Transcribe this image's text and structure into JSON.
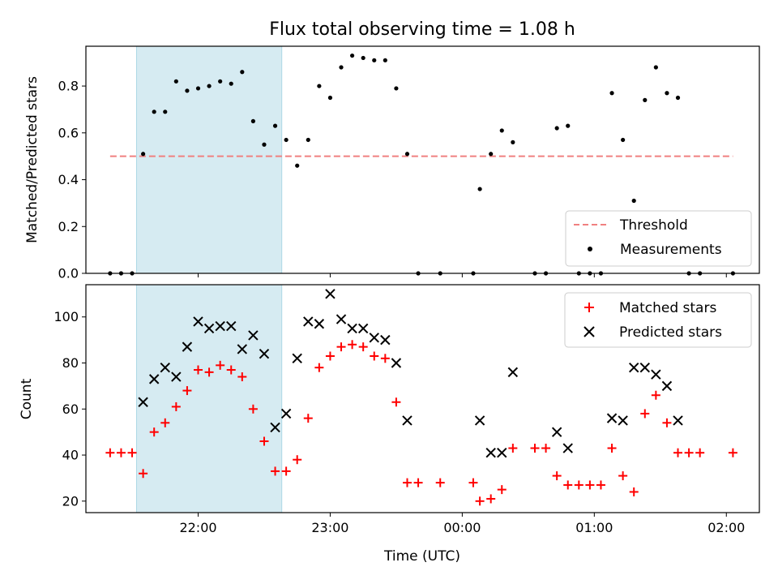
{
  "chart_data": [
    {
      "type": "scatter",
      "title": "Flux total observing time = 1.08 h",
      "xlabel": "",
      "ylabel": "Matched/Predicted stars",
      "x_unit": "time (UTC)",
      "xlim": [
        "21:09",
        "02:15"
      ],
      "ylim": [
        0,
        0.97
      ],
      "yticks": [
        "0.0",
        "0.2",
        "0.4",
        "0.6",
        "0.8"
      ],
      "highlight_span": {
        "start": "21:32",
        "end": "22:38",
        "color": "#add8e6"
      },
      "threshold": {
        "name": "Threshold",
        "y": 0.5,
        "x": [
          "21:20",
          "02:03"
        ],
        "color": "#f08080",
        "style": "dashed"
      },
      "legend": {
        "position": "lower right",
        "entries": [
          "Threshold",
          "Measurements"
        ]
      },
      "series": [
        {
          "name": "Measurements",
          "marker": "dot",
          "color": "#000000",
          "points": [
            [
              "21:20",
              0.0
            ],
            [
              "21:25",
              0.0
            ],
            [
              "21:30",
              0.0
            ],
            [
              "21:35",
              0.51
            ],
            [
              "21:40",
              0.69
            ],
            [
              "21:45",
              0.69
            ],
            [
              "21:50",
              0.82
            ],
            [
              "21:55",
              0.78
            ],
            [
              "22:00",
              0.79
            ],
            [
              "22:05",
              0.8
            ],
            [
              "22:10",
              0.82
            ],
            [
              "22:15",
              0.81
            ],
            [
              "22:20",
              0.86
            ],
            [
              "22:25",
              0.65
            ],
            [
              "22:30",
              0.55
            ],
            [
              "22:35",
              0.63
            ],
            [
              "22:40",
              0.57
            ],
            [
              "22:45",
              0.46
            ],
            [
              "22:50",
              0.57
            ],
            [
              "22:55",
              0.8
            ],
            [
              "23:00",
              0.75
            ],
            [
              "23:05",
              0.88
            ],
            [
              "23:10",
              0.93
            ],
            [
              "23:15",
              0.92
            ],
            [
              "23:20",
              0.91
            ],
            [
              "23:25",
              0.91
            ],
            [
              "23:30",
              0.79
            ],
            [
              "23:35",
              0.51
            ],
            [
              "23:40",
              0.0
            ],
            [
              "23:50",
              0.0
            ],
            [
              "00:05",
              0.0
            ],
            [
              "00:08",
              0.36
            ],
            [
              "00:13",
              0.51
            ],
            [
              "00:18",
              0.61
            ],
            [
              "00:23",
              0.56
            ],
            [
              "00:33",
              0.0
            ],
            [
              "00:38",
              0.0
            ],
            [
              "00:43",
              0.62
            ],
            [
              "00:48",
              0.63
            ],
            [
              "00:53",
              0.0
            ],
            [
              "00:58",
              0.0
            ],
            [
              "01:03",
              0.0
            ],
            [
              "01:08",
              0.77
            ],
            [
              "01:13",
              0.57
            ],
            [
              "01:18",
              0.31
            ],
            [
              "01:23",
              0.74
            ],
            [
              "01:28",
              0.88
            ],
            [
              "01:33",
              0.77
            ],
            [
              "01:38",
              0.75
            ],
            [
              "01:43",
              0.0
            ],
            [
              "01:48",
              0.0
            ],
            [
              "02:03",
              0.0
            ]
          ]
        }
      ]
    },
    {
      "type": "scatter",
      "title": "",
      "xlabel": "Time (UTC)",
      "ylabel": "Count",
      "xlim": [
        "21:09",
        "02:15"
      ],
      "ylim": [
        15,
        114
      ],
      "yticks": [
        "20",
        "40",
        "60",
        "80",
        "100"
      ],
      "xticks": [
        "22:00",
        "23:00",
        "00:00",
        "01:00",
        "02:00"
      ],
      "highlight_span": {
        "start": "21:32",
        "end": "22:38",
        "color": "#add8e6"
      },
      "legend": {
        "position": "upper right",
        "entries": [
          "Matched stars",
          "Predicted stars"
        ]
      },
      "series": [
        {
          "name": "Matched stars",
          "marker": "plus",
          "color": "#ff0000",
          "points": [
            [
              "21:20",
              41
            ],
            [
              "21:25",
              41
            ],
            [
              "21:30",
              41
            ],
            [
              "21:35",
              32
            ],
            [
              "21:40",
              50
            ],
            [
              "21:45",
              54
            ],
            [
              "21:50",
              61
            ],
            [
              "21:55",
              68
            ],
            [
              "22:00",
              77
            ],
            [
              "22:05",
              76
            ],
            [
              "22:10",
              79
            ],
            [
              "22:15",
              77
            ],
            [
              "22:20",
              74
            ],
            [
              "22:25",
              60
            ],
            [
              "22:30",
              46
            ],
            [
              "22:35",
              33
            ],
            [
              "22:40",
              33
            ],
            [
              "22:45",
              38
            ],
            [
              "22:50",
              56
            ],
            [
              "22:55",
              78
            ],
            [
              "23:00",
              83
            ],
            [
              "23:05",
              87
            ],
            [
              "23:10",
              88
            ],
            [
              "23:15",
              87
            ],
            [
              "23:20",
              83
            ],
            [
              "23:25",
              82
            ],
            [
              "23:30",
              63
            ],
            [
              "23:35",
              28
            ],
            [
              "23:40",
              28
            ],
            [
              "23:50",
              28
            ],
            [
              "00:05",
              28
            ],
            [
              "00:08",
              20
            ],
            [
              "00:13",
              21
            ],
            [
              "00:18",
              25
            ],
            [
              "00:23",
              43
            ],
            [
              "00:33",
              43
            ],
            [
              "00:38",
              43
            ],
            [
              "00:43",
              31
            ],
            [
              "00:48",
              27
            ],
            [
              "00:53",
              27
            ],
            [
              "00:58",
              27
            ],
            [
              "01:03",
              27
            ],
            [
              "01:08",
              43
            ],
            [
              "01:13",
              31
            ],
            [
              "01:18",
              24
            ],
            [
              "01:23",
              58
            ],
            [
              "01:28",
              66
            ],
            [
              "01:33",
              54
            ],
            [
              "01:38",
              41
            ],
            [
              "01:43",
              41
            ],
            [
              "01:48",
              41
            ],
            [
              "02:03",
              41
            ]
          ]
        },
        {
          "name": "Predicted stars",
          "marker": "x",
          "color": "#000000",
          "points": [
            [
              "21:35",
              63
            ],
            [
              "21:40",
              73
            ],
            [
              "21:45",
              78
            ],
            [
              "21:50",
              74
            ],
            [
              "21:55",
              87
            ],
            [
              "22:00",
              98
            ],
            [
              "22:05",
              95
            ],
            [
              "22:10",
              96
            ],
            [
              "22:15",
              96
            ],
            [
              "22:20",
              86
            ],
            [
              "22:25",
              92
            ],
            [
              "22:30",
              84
            ],
            [
              "22:35",
              52
            ],
            [
              "22:40",
              58
            ],
            [
              "22:45",
              82
            ],
            [
              "22:50",
              98
            ],
            [
              "22:55",
              97
            ],
            [
              "23:00",
              110
            ],
            [
              "23:05",
              99
            ],
            [
              "23:10",
              95
            ],
            [
              "23:15",
              95
            ],
            [
              "23:20",
              91
            ],
            [
              "23:25",
              90
            ],
            [
              "23:30",
              80
            ],
            [
              "23:35",
              55
            ],
            [
              "00:08",
              55
            ],
            [
              "00:13",
              41
            ],
            [
              "00:18",
              41
            ],
            [
              "00:23",
              76
            ],
            [
              "00:43",
              50
            ],
            [
              "00:48",
              43
            ],
            [
              "01:08",
              56
            ],
            [
              "01:13",
              55
            ],
            [
              "01:18",
              78
            ],
            [
              "01:23",
              78
            ],
            [
              "01:28",
              75
            ],
            [
              "01:33",
              70
            ],
            [
              "01:38",
              55
            ]
          ]
        }
      ]
    }
  ]
}
